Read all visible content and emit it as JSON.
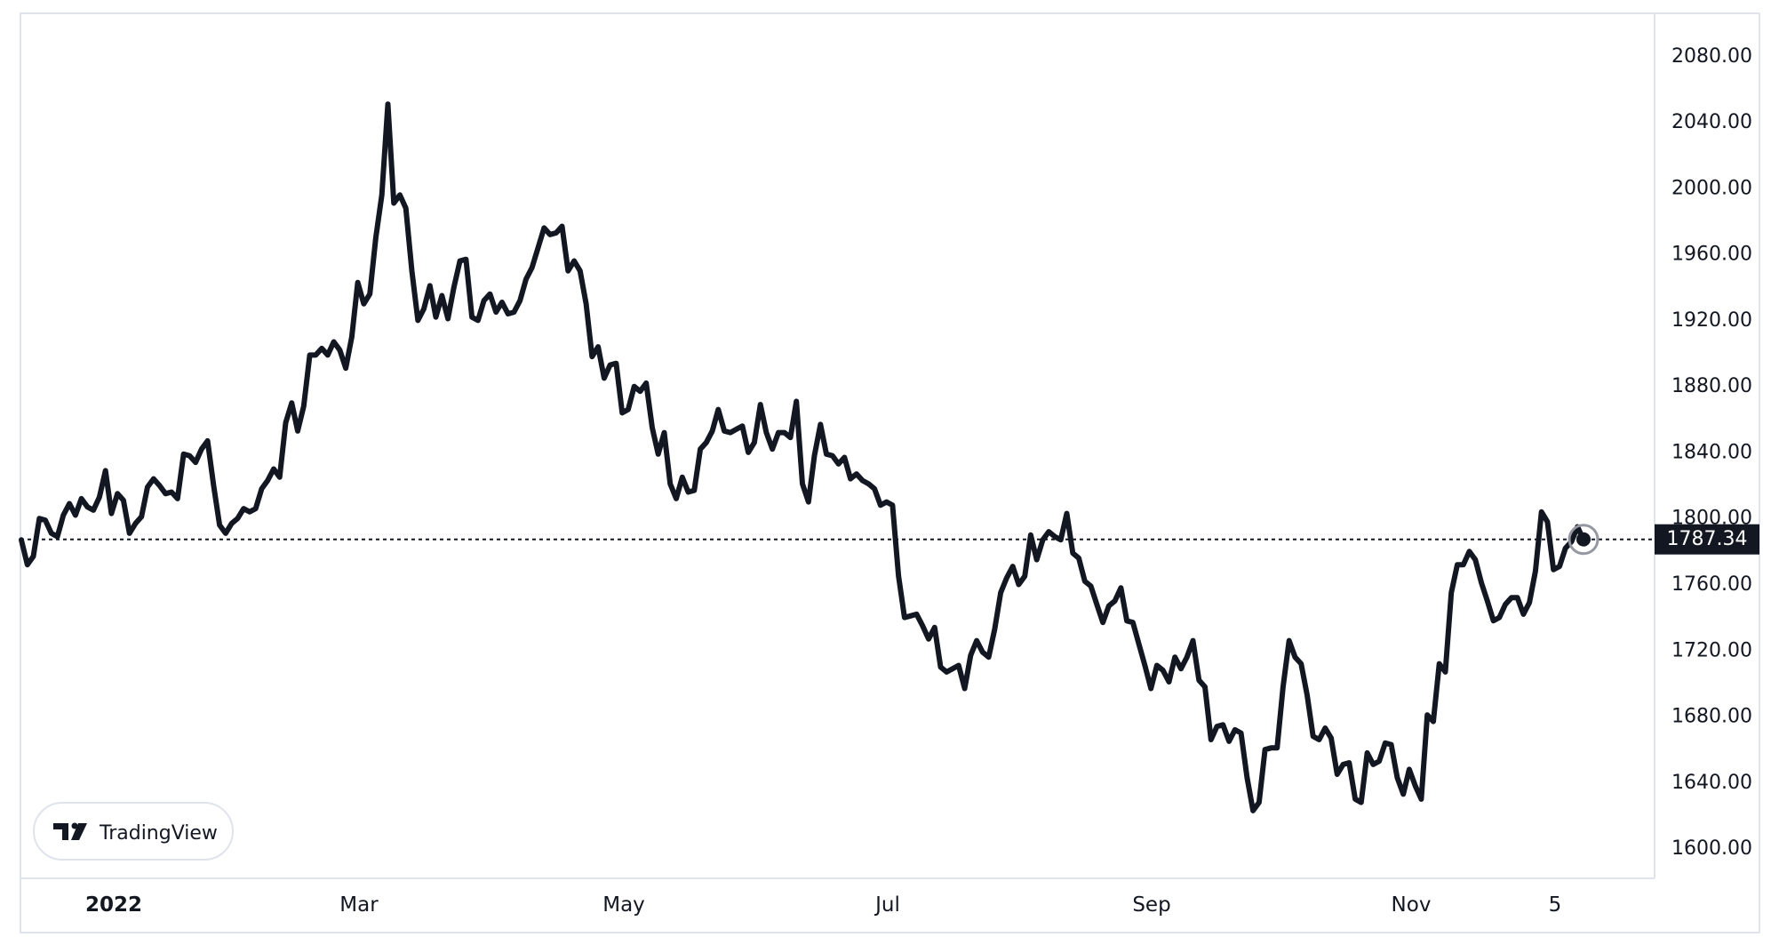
{
  "brand": {
    "name": "TradingView",
    "logo_icon": "tradingview-logo-icon"
  },
  "colors": {
    "line": "#131722",
    "grid": "#e0e3eb",
    "background": "#ffffff",
    "badge_bg": "#131722",
    "badge_text": "#ffffff"
  },
  "chart_data": {
    "type": "line",
    "title": "",
    "xlabel": "",
    "ylabel": "",
    "x_ticks": [
      "2022",
      "Mar",
      "May",
      "Jul",
      "Sep",
      "Nov",
      "5"
    ],
    "y_ticks": [
      "1600.00",
      "1640.00",
      "1680.00",
      "1720.00",
      "1760.00",
      "1800.00",
      "1840.00",
      "1880.00",
      "1920.00",
      "1960.00",
      "2000.00",
      "2040.00",
      "2080.00"
    ],
    "ylim": [
      1582,
      2106
    ],
    "last_price": "1787.34",
    "last_value": 1787.34,
    "grid": false,
    "series": [
      {
        "values": [
          1787,
          1772,
          1777,
          1800,
          1799,
          1791,
          1789,
          1802,
          1809,
          1802,
          1812,
          1807,
          1805,
          1813,
          1829,
          1803,
          1815,
          1811,
          1791,
          1797,
          1801,
          1819,
          1824,
          1820,
          1815,
          1816,
          1812,
          1839,
          1838,
          1834,
          1842,
          1847,
          1820,
          1796,
          1791,
          1797,
          1800,
          1806,
          1804,
          1806,
          1818,
          1823,
          1830,
          1825,
          1858,
          1870,
          1853,
          1868,
          1899,
          1899,
          1903,
          1899,
          1907,
          1902,
          1891,
          1910,
          1943,
          1930,
          1936,
          1970,
          1996,
          2051,
          1991,
          1996,
          1988,
          1950,
          1920,
          1927,
          1941,
          1922,
          1935,
          1921,
          1940,
          1956,
          1957,
          1922,
          1920,
          1932,
          1936,
          1925,
          1931,
          1924,
          1925,
          1932,
          1945,
          1952,
          1964,
          1976,
          1972,
          1973,
          1977,
          1950,
          1956,
          1950,
          1930,
          1898,
          1904,
          1885,
          1893,
          1894,
          1864,
          1866,
          1880,
          1877,
          1882,
          1855,
          1839,
          1852,
          1821,
          1812,
          1825,
          1816,
          1817,
          1842,
          1846,
          1853,
          1866,
          1853,
          1852,
          1854,
          1856,
          1840,
          1846,
          1869,
          1852,
          1842,
          1852,
          1852,
          1849,
          1871,
          1821,
          1810,
          1838,
          1857,
          1839,
          1838,
          1833,
          1837,
          1824,
          1827,
          1823,
          1821,
          1818,
          1808,
          1810,
          1808,
          1765,
          1740,
          1741,
          1742,
          1735,
          1727,
          1734,
          1710,
          1707,
          1709,
          1711,
          1697,
          1717,
          1726,
          1719,
          1716,
          1733,
          1755,
          1764,
          1771,
          1760,
          1765,
          1790,
          1775,
          1787,
          1792,
          1789,
          1787,
          1803,
          1779,
          1776,
          1762,
          1759,
          1748,
          1737,
          1747,
          1750,
          1758,
          1738,
          1737,
          1724,
          1711,
          1697,
          1711,
          1708,
          1701,
          1716,
          1709,
          1716,
          1726,
          1702,
          1698,
          1666,
          1674,
          1675,
          1665,
          1672,
          1670,
          1643,
          1623,
          1628,
          1660,
          1661,
          1661,
          1698,
          1726,
          1716,
          1712,
          1693,
          1668,
          1666,
          1673,
          1667,
          1645,
          1651,
          1652,
          1630,
          1628,
          1658,
          1651,
          1653,
          1664,
          1663,
          1643,
          1633,
          1648,
          1638,
          1630,
          1681,
          1677,
          1712,
          1707,
          1755,
          1772,
          1772,
          1780,
          1775,
          1761,
          1750,
          1738,
          1740,
          1748,
          1752,
          1752,
          1742,
          1749,
          1768,
          1804,
          1798,
          1769,
          1771,
          1782,
          1786,
          1795,
          1787
        ]
      }
    ]
  }
}
